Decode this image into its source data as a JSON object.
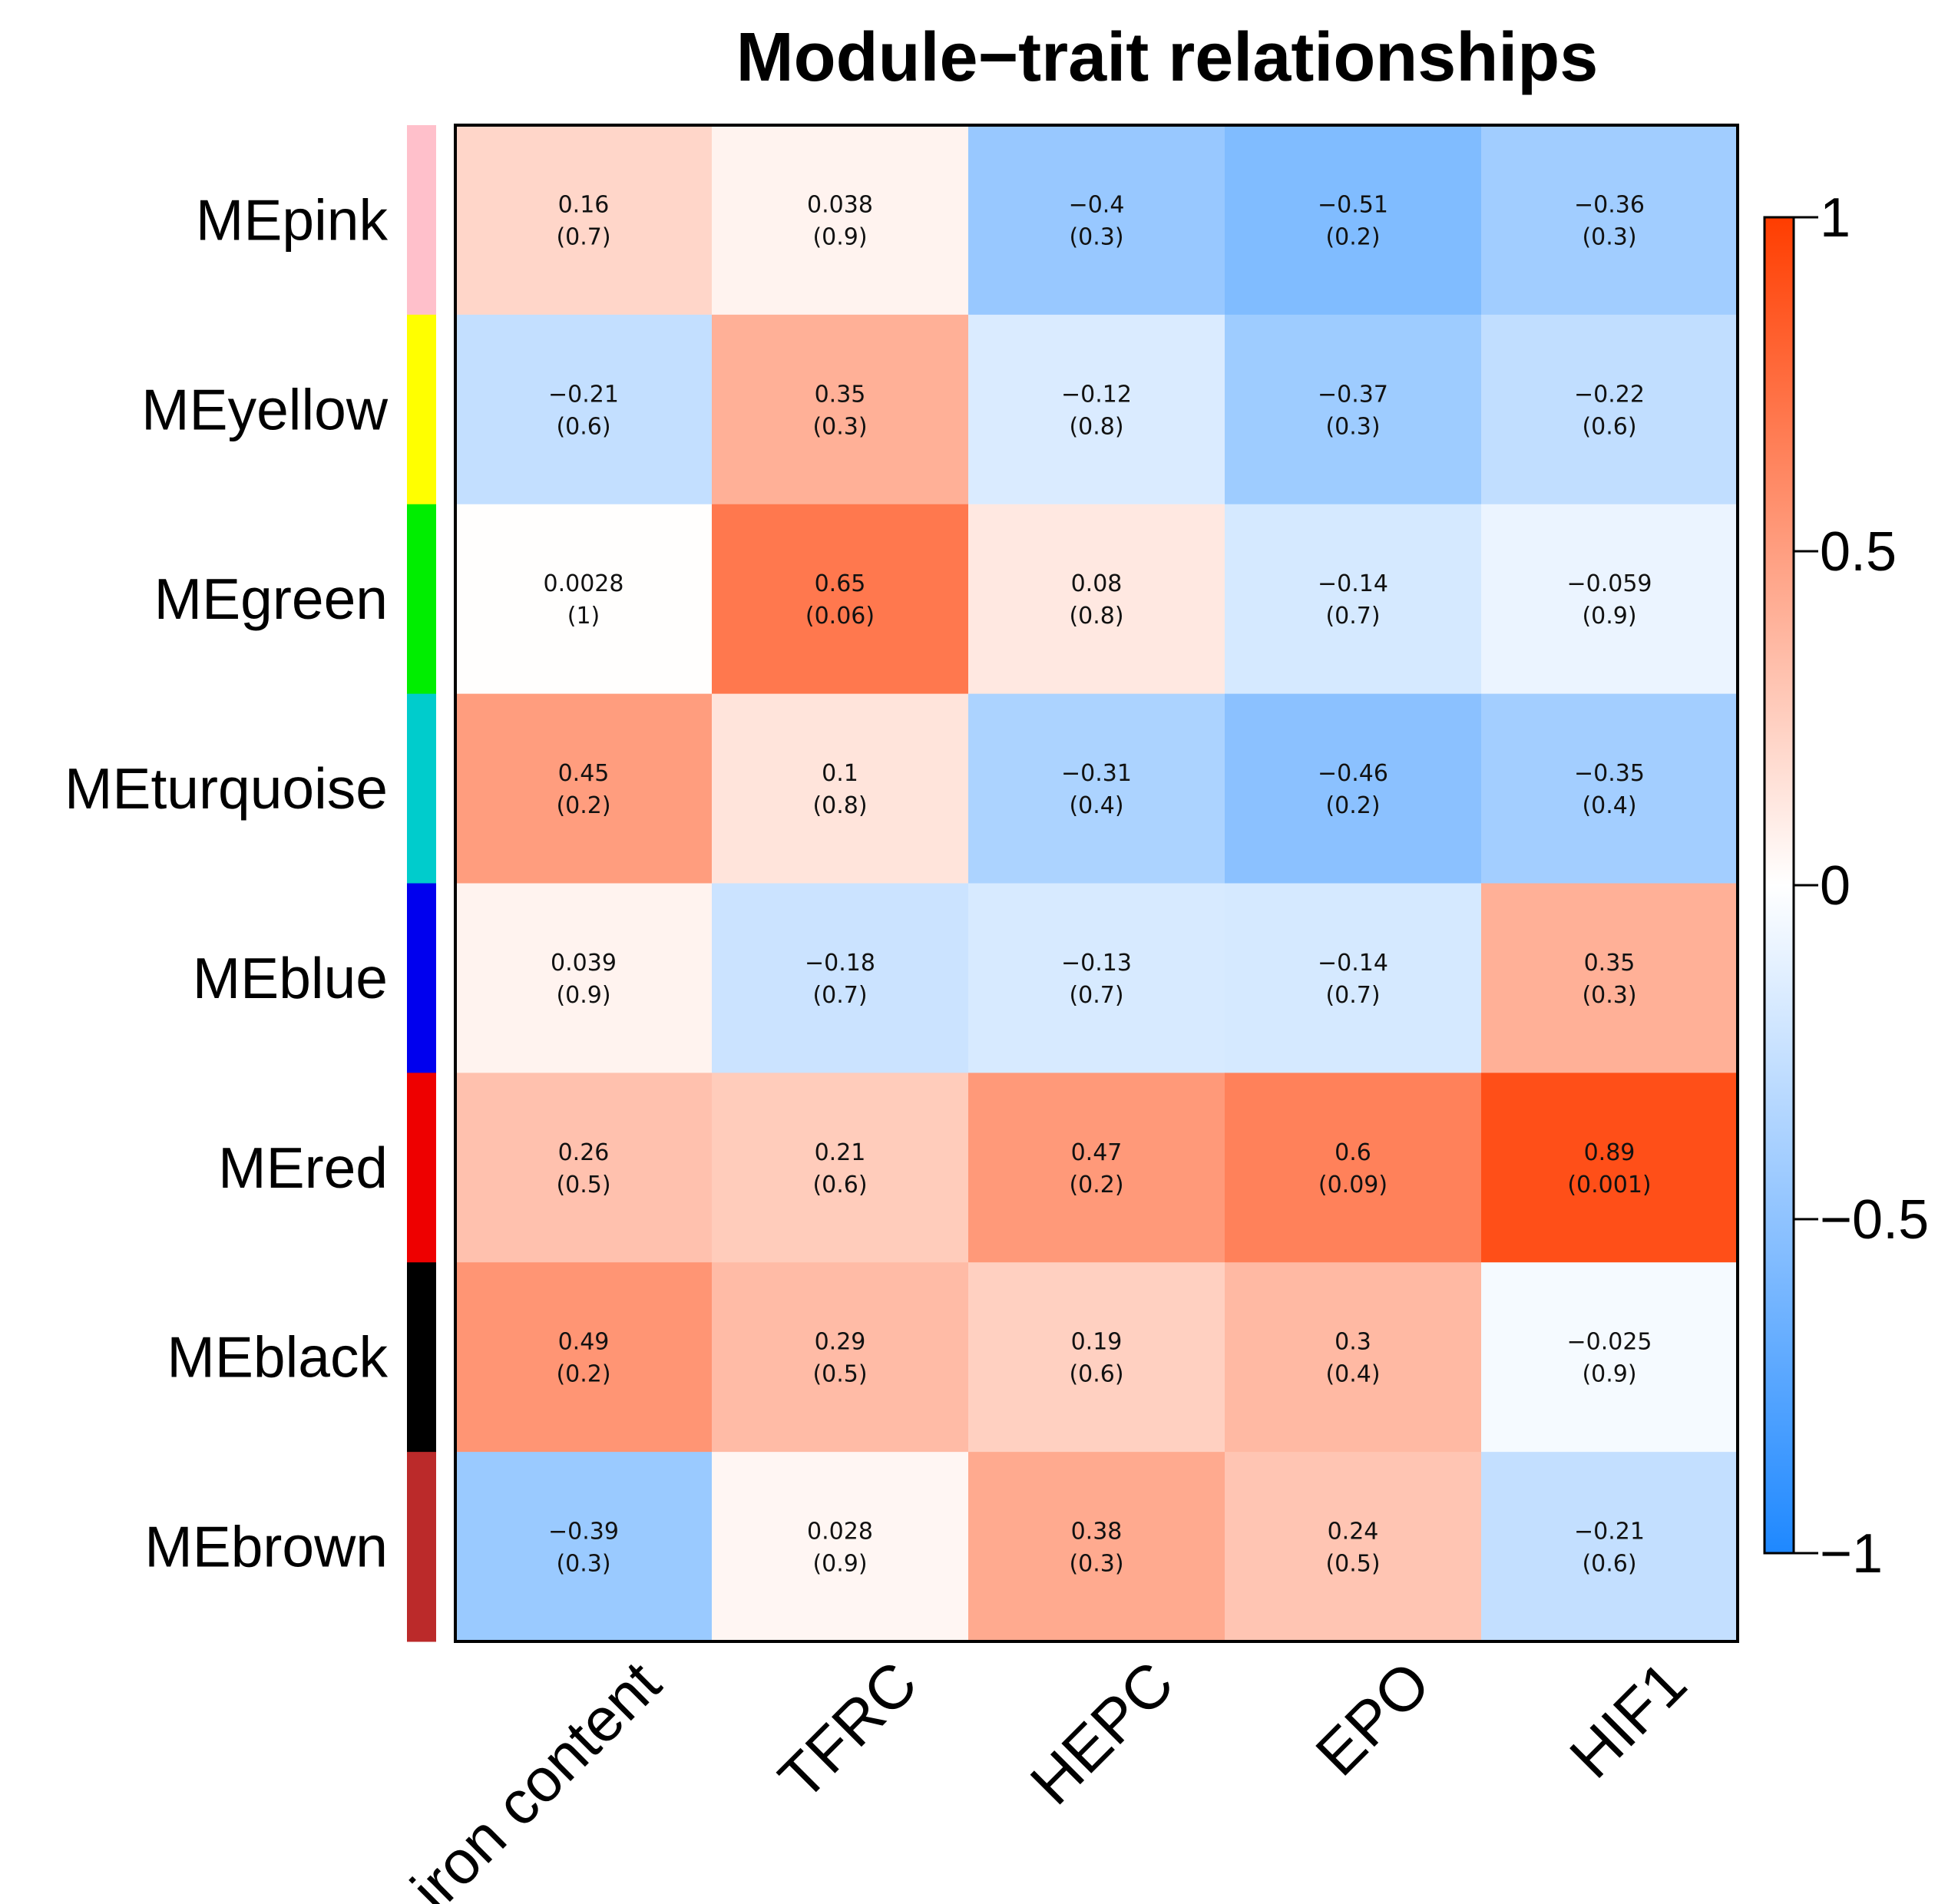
{
  "chart_data": {
    "type": "heatmap",
    "title": "Module−trait relationships",
    "rows": [
      "MEpink",
      "MEyellow",
      "MEgreen",
      "MEturquoise",
      "MEblue",
      "MEred",
      "MEblack",
      "MEbrown"
    ],
    "row_colors": [
      "#ffc0cb",
      "#ffff00",
      "#00ee00",
      "#00cccc",
      "#0000ee",
      "#ee0000",
      "#000000",
      "#bb2a2a"
    ],
    "columns": [
      "iron content",
      "TFRC",
      "HEPC",
      "EPO",
      "HIF1"
    ],
    "values": [
      [
        0.16,
        0.038,
        -0.4,
        -0.51,
        -0.36
      ],
      [
        -0.21,
        0.35,
        -0.12,
        -0.37,
        -0.22
      ],
      [
        0.0028,
        0.65,
        0.08,
        -0.14,
        -0.059
      ],
      [
        0.45,
        0.1,
        -0.31,
        -0.46,
        -0.35
      ],
      [
        0.039,
        -0.18,
        -0.13,
        -0.14,
        0.35
      ],
      [
        0.26,
        0.21,
        0.47,
        0.6,
        0.89
      ],
      [
        0.49,
        0.29,
        0.19,
        0.3,
        -0.025
      ],
      [
        -0.39,
        0.028,
        0.38,
        0.24,
        -0.21
      ]
    ],
    "cell_text": [
      [
        [
          "0.16",
          "(0.7)"
        ],
        [
          "0.038",
          "(0.9)"
        ],
        [
          "−0.4",
          "(0.3)"
        ],
        [
          "−0.51",
          "(0.2)"
        ],
        [
          "−0.36",
          "(0.3)"
        ]
      ],
      [
        [
          "−0.21",
          "(0.6)"
        ],
        [
          "0.35",
          "(0.3)"
        ],
        [
          "−0.12",
          "(0.8)"
        ],
        [
          "−0.37",
          "(0.3)"
        ],
        [
          "−0.22",
          "(0.6)"
        ]
      ],
      [
        [
          "0.0028",
          "(1)"
        ],
        [
          "0.65",
          "(0.06)"
        ],
        [
          "0.08",
          "(0.8)"
        ],
        [
          "−0.14",
          "(0.7)"
        ],
        [
          "−0.059",
          "(0.9)"
        ]
      ],
      [
        [
          "0.45",
          "(0.2)"
        ],
        [
          "0.1",
          "(0.8)"
        ],
        [
          "−0.31",
          "(0.4)"
        ],
        [
          "−0.46",
          "(0.2)"
        ],
        [
          "−0.35",
          "(0.4)"
        ]
      ],
      [
        [
          "0.039",
          "(0.9)"
        ],
        [
          "−0.18",
          "(0.7)"
        ],
        [
          "−0.13",
          "(0.7)"
        ],
        [
          "−0.14",
          "(0.7)"
        ],
        [
          "0.35",
          "(0.3)"
        ]
      ],
      [
        [
          "0.26",
          "(0.5)"
        ],
        [
          "0.21",
          "(0.6)"
        ],
        [
          "0.47",
          "(0.2)"
        ],
        [
          "0.6",
          "(0.09)"
        ],
        [
          "0.89",
          "(0.001)"
        ]
      ],
      [
        [
          "0.49",
          "(0.2)"
        ],
        [
          "0.29",
          "(0.5)"
        ],
        [
          "0.19",
          "(0.6)"
        ],
        [
          "0.3",
          "(0.4)"
        ],
        [
          "−0.025",
          "(0.9)"
        ]
      ],
      [
        [
          "−0.39",
          "(0.3)"
        ],
        [
          "0.028",
          "(0.9)"
        ],
        [
          "0.38",
          "(0.3)"
        ],
        [
          "0.24",
          "(0.5)"
        ],
        [
          "−0.21",
          "(0.6)"
        ]
      ]
    ],
    "color_scale": {
      "range": [
        -1,
        1
      ],
      "negative_color": "#1e88ff",
      "mid_color": "#ffffff",
      "positive_color": "#ff3d00",
      "ticks": [
        1,
        0.5,
        0,
        -0.5,
        -1
      ],
      "tick_labels": [
        "1",
        "0.5",
        "0",
        "−0.5",
        "−1"
      ]
    }
  }
}
